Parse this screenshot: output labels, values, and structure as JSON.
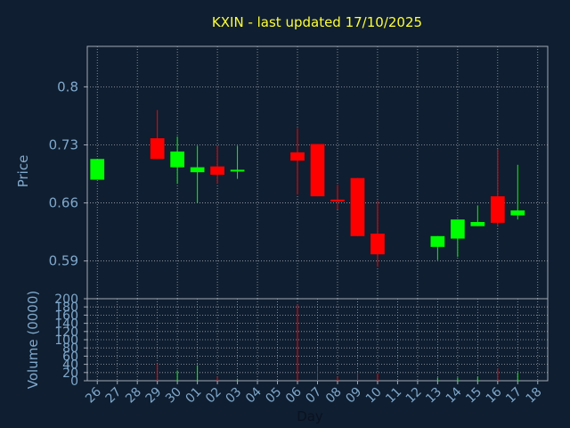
{
  "chart_data": {
    "type": "candlestick",
    "title": "KXIN - last updated 17/10/2025",
    "xlabel": "Day",
    "price_panel": {
      "ylabel": "Price",
      "yticks": [
        "0.8",
        "0.73",
        "0.66",
        "0.59"
      ],
      "ylim": [
        0.5445,
        0.8488
      ],
      "grid": true
    },
    "volume_panel": {
      "ylabel": "Volume (0000)",
      "yticks": [
        "200",
        "180",
        "160",
        "140",
        "120",
        "100",
        "80",
        "60",
        "40",
        "20",
        "0"
      ],
      "ylim": [
        0,
        200
      ],
      "grid": true
    },
    "categories": [
      "26",
      "27",
      "28",
      "29",
      "30",
      "01",
      "02",
      "03",
      "04",
      "05",
      "06",
      "07",
      "08",
      "09",
      "10",
      "11",
      "12",
      "13",
      "14",
      "15",
      "16",
      "17",
      "18"
    ],
    "candles": [
      {
        "x": "26",
        "open": 0.688,
        "close": 0.713,
        "high": 0.713,
        "low": 0.688,
        "volume": 0,
        "dir": "up"
      },
      {
        "x": "29",
        "open": 0.738,
        "close": 0.713,
        "high": 0.772,
        "low": 0.713,
        "volume": 42,
        "dir": "down"
      },
      {
        "x": "30",
        "open": 0.703,
        "close": 0.722,
        "high": 0.74,
        "low": 0.683,
        "volume": 25,
        "dir": "up"
      },
      {
        "x": "01",
        "open": 0.697,
        "close": 0.703,
        "high": 0.729,
        "low": 0.66,
        "volume": 38,
        "dir": "up"
      },
      {
        "x": "02",
        "open": 0.704,
        "close": 0.694,
        "high": 0.729,
        "low": 0.683,
        "volume": 10,
        "dir": "down"
      },
      {
        "x": "03",
        "open": 0.698,
        "close": 0.7,
        "high": 0.729,
        "low": 0.689,
        "volume": 5,
        "dir": "up"
      },
      {
        "x": "06",
        "open": 0.721,
        "close": 0.711,
        "high": 0.75,
        "low": 0.67,
        "volume": 186,
        "dir": "down"
      },
      {
        "x": "07",
        "open": 0.731,
        "close": 0.668,
        "high": 0.731,
        "low": 0.668,
        "volume": 38,
        "dir": "down"
      },
      {
        "x": "08",
        "open": 0.664,
        "close": 0.662,
        "high": 0.682,
        "low": 0.652,
        "volume": 10,
        "dir": "down"
      },
      {
        "x": "09",
        "open": 0.69,
        "close": 0.62,
        "high": 0.69,
        "low": 0.62,
        "volume": 18,
        "dir": "down"
      },
      {
        "x": "10",
        "open": 0.623,
        "close": 0.598,
        "high": 0.663,
        "low": 0.583,
        "volume": 18,
        "dir": "down"
      },
      {
        "x": "13",
        "open": 0.607,
        "close": 0.62,
        "high": 0.62,
        "low": 0.591,
        "volume": 8,
        "dir": "up"
      },
      {
        "x": "14",
        "open": 0.617,
        "close": 0.64,
        "high": 0.64,
        "low": 0.595,
        "volume": 8,
        "dir": "up"
      },
      {
        "x": "15",
        "open": 0.632,
        "close": 0.637,
        "high": 0.657,
        "low": 0.632,
        "volume": 10,
        "dir": "up"
      },
      {
        "x": "16",
        "open": 0.668,
        "close": 0.636,
        "high": 0.725,
        "low": 0.632,
        "volume": 30,
        "dir": "down"
      },
      {
        "x": "17",
        "open": 0.645,
        "close": 0.651,
        "high": 0.706,
        "low": 0.64,
        "volume": 20,
        "dir": "up"
      }
    ],
    "colors": {
      "background": "#0f1e30",
      "plot_bg": "#0f1e30",
      "grid": "#a0a8b4",
      "up": "#00ff00",
      "down": "#ff0000",
      "title": "#ffff33",
      "axis_text": "#7fa8cc"
    }
  }
}
